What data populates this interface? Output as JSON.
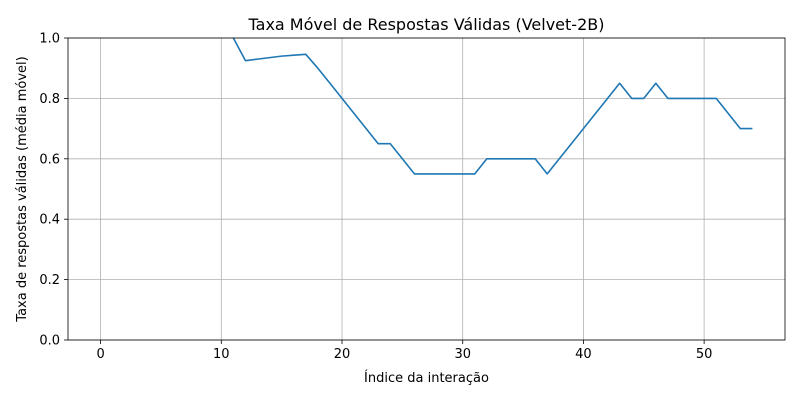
{
  "chart_data": {
    "type": "line",
    "title": "Taxa Móvel de Respostas Válidas (Velvet-2B)",
    "xlabel": "Índice da interação",
    "ylabel": "Taxa de respostas válidas (média móvel)",
    "xlim": [
      -2.7,
      56.7
    ],
    "ylim": [
      0.0,
      1.0
    ],
    "xticks": [
      0,
      10,
      20,
      30,
      40,
      50
    ],
    "yticks": [
      0.0,
      0.2,
      0.4,
      0.6,
      0.8,
      1.0
    ],
    "xtick_labels": [
      "0",
      "10",
      "20",
      "30",
      "40",
      "50"
    ],
    "ytick_labels": [
      "0.0",
      "0.2",
      "0.4",
      "0.6",
      "0.8",
      "1.0"
    ],
    "grid": true,
    "series": [
      {
        "color": "#1f77b4",
        "x": [
          11,
          12,
          13,
          14,
          15,
          16,
          17,
          18,
          19,
          20,
          21,
          22,
          23,
          24,
          25,
          26,
          27,
          28,
          29,
          30,
          31,
          32,
          33,
          34,
          35,
          36,
          37,
          38,
          39,
          40,
          41,
          42,
          43,
          44,
          45,
          46,
          47,
          48,
          49,
          50,
          51,
          52,
          53,
          54
        ],
        "y": [
          1.0,
          0.925,
          0.93,
          0.935,
          0.94,
          0.943,
          0.946,
          0.9,
          0.85,
          0.8,
          0.75,
          0.7,
          0.65,
          0.65,
          0.6,
          0.55,
          0.55,
          0.55,
          0.55,
          0.55,
          0.55,
          0.6,
          0.6,
          0.6,
          0.6,
          0.6,
          0.55,
          0.6,
          0.65,
          0.7,
          0.75,
          0.8,
          0.85,
          0.8,
          0.8,
          0.85,
          0.8,
          0.8,
          0.8,
          0.8,
          0.8,
          0.75,
          0.7,
          0.7
        ]
      }
    ]
  }
}
